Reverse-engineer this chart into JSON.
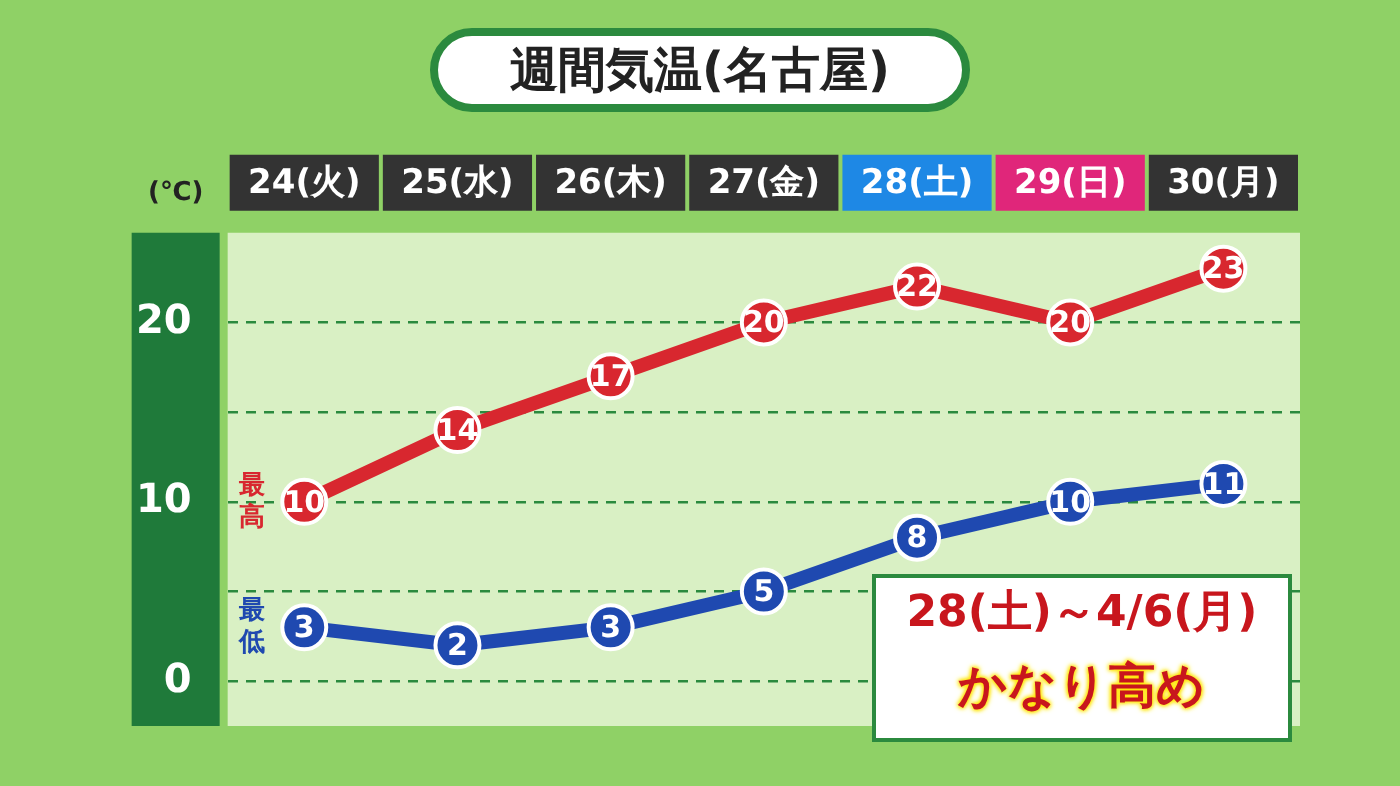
{
  "chart_data": {
    "type": "line",
    "title": "週間気温(名古屋)",
    "ylabel": "(℃)",
    "categories": [
      "24(火)",
      "25(水)",
      "26(木)",
      "27(金)",
      "28(土)",
      "29(日)",
      "30(月)"
    ],
    "series": [
      {
        "name": "最高",
        "color": "#d8272f",
        "values": [
          10,
          14,
          17,
          20,
          22,
          20,
          23
        ]
      },
      {
        "name": "最低",
        "color": "#1f49b0",
        "values": [
          3,
          2,
          3,
          5,
          8,
          10,
          11
        ]
      }
    ],
    "ylim": [
      -2.5,
      25
    ],
    "yticks": [
      0,
      {
        "value": 5,
        "label": null
      },
      10,
      {
        "value": 15,
        "label": null
      },
      20
    ],
    "grid": "y",
    "marker": "circle",
    "line_style": "solid",
    "data_labels": true,
    "legend": false,
    "annotations": [
      "28(土)～4/6(月)",
      "かなり高め"
    ]
  }
}
